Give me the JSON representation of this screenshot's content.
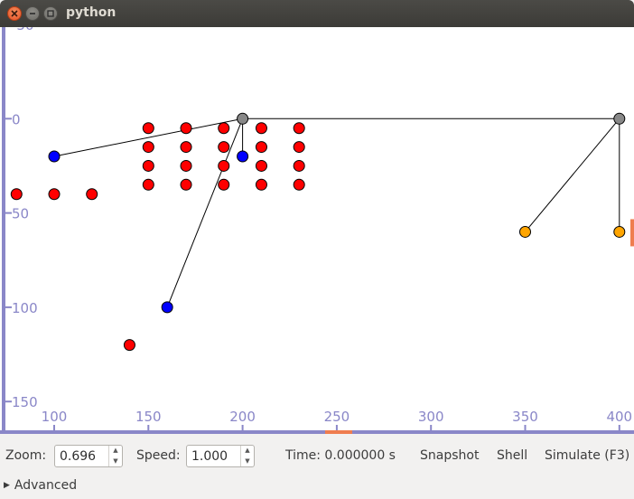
{
  "window": {
    "title": "python"
  },
  "plot": {
    "x_ticks": [
      "100",
      "150",
      "200",
      "250",
      "300",
      "350",
      "400"
    ],
    "y_ticks": [
      "-50",
      "0",
      "50",
      "100",
      "150"
    ],
    "axis_color": "#8a87c8",
    "marker_color": "#ef7d4f",
    "points": [
      {
        "x": 150,
        "y": 5,
        "color": "#ff0000"
      },
      {
        "x": 170,
        "y": 5,
        "color": "#ff0000"
      },
      {
        "x": 190,
        "y": 5,
        "color": "#ff0000"
      },
      {
        "x": 210,
        "y": 5,
        "color": "#ff0000"
      },
      {
        "x": 230,
        "y": 5,
        "color": "#ff0000"
      },
      {
        "x": 150,
        "y": 15,
        "color": "#ff0000"
      },
      {
        "x": 170,
        "y": 15,
        "color": "#ff0000"
      },
      {
        "x": 190,
        "y": 15,
        "color": "#ff0000"
      },
      {
        "x": 210,
        "y": 15,
        "color": "#ff0000"
      },
      {
        "x": 230,
        "y": 15,
        "color": "#ff0000"
      },
      {
        "x": 150,
        "y": 25,
        "color": "#ff0000"
      },
      {
        "x": 170,
        "y": 25,
        "color": "#ff0000"
      },
      {
        "x": 190,
        "y": 25,
        "color": "#ff0000"
      },
      {
        "x": 210,
        "y": 25,
        "color": "#ff0000"
      },
      {
        "x": 230,
        "y": 25,
        "color": "#ff0000"
      },
      {
        "x": 150,
        "y": 35,
        "color": "#ff0000"
      },
      {
        "x": 170,
        "y": 35,
        "color": "#ff0000"
      },
      {
        "x": 190,
        "y": 35,
        "color": "#ff0000"
      },
      {
        "x": 210,
        "y": 35,
        "color": "#ff0000"
      },
      {
        "x": 230,
        "y": 35,
        "color": "#ff0000"
      },
      {
        "x": 80,
        "y": 40,
        "color": "#ff0000"
      },
      {
        "x": 100,
        "y": 40,
        "color": "#ff0000"
      },
      {
        "x": 120,
        "y": 40,
        "color": "#ff0000"
      },
      {
        "x": 140,
        "y": 120,
        "color": "#ff0000"
      },
      {
        "x": 100,
        "y": 20,
        "color": "#0000ff"
      },
      {
        "x": 200,
        "y": 20,
        "color": "#0000ff"
      },
      {
        "x": 160,
        "y": 100,
        "color": "#0000ff"
      },
      {
        "x": 200,
        "y": 0,
        "color": "#888888"
      },
      {
        "x": 400,
        "y": 0,
        "color": "#888888"
      },
      {
        "x": 350,
        "y": 60,
        "color": "#ffa500"
      },
      {
        "x": 400,
        "y": 60,
        "color": "#ffa500"
      }
    ],
    "links": [
      {
        "from": [
          200,
          0
        ],
        "to": [
          400,
          0
        ]
      },
      {
        "from": [
          200,
          0
        ],
        "to": [
          100,
          20
        ]
      },
      {
        "from": [
          200,
          0
        ],
        "to": [
          200,
          20
        ]
      },
      {
        "from": [
          200,
          0
        ],
        "to": [
          160,
          100
        ]
      },
      {
        "from": [
          400,
          0
        ],
        "to": [
          350,
          60
        ]
      },
      {
        "from": [
          400,
          0
        ],
        "to": [
          400,
          60
        ]
      }
    ],
    "x_marker": 251,
    "y_marker": 60
  },
  "controls": {
    "zoom_label": "Zoom:",
    "zoom_value": "0.696",
    "speed_label": "Speed:",
    "speed_value": "1.000",
    "time_text": "Time: 0.000000 s",
    "snapshot_label": "Snapshot",
    "shell_label": "Shell",
    "simulate_label": "Simulate (F3)",
    "advanced_label": "Advanced"
  }
}
